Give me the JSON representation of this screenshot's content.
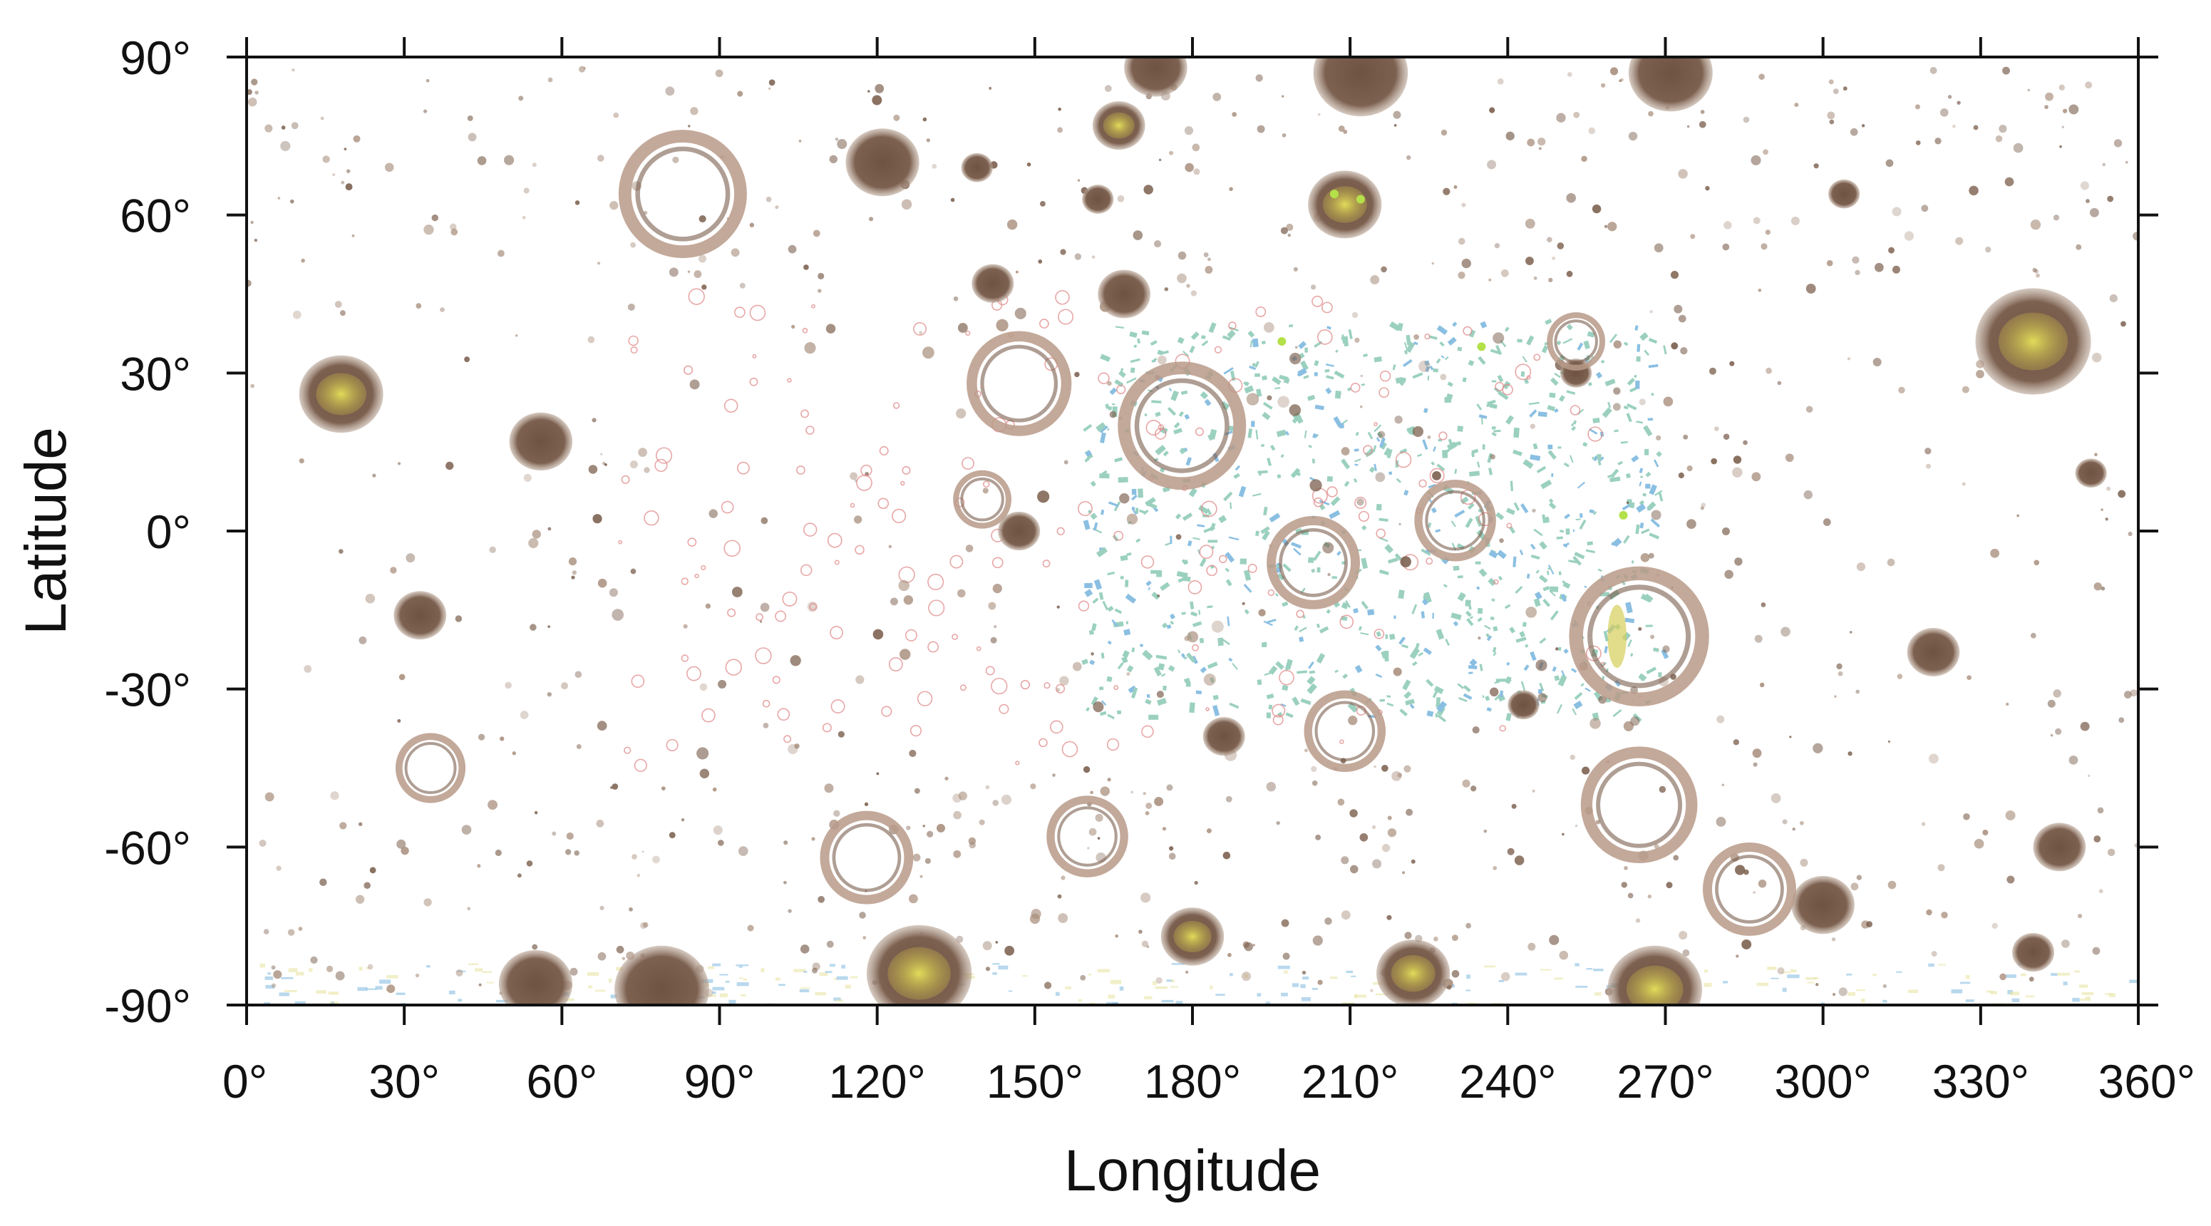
{
  "figure": {
    "x_axis_label": "Longitude",
    "y_axis_label": "Latitude",
    "x_ticks": [
      "0°",
      "30°",
      "60°",
      "90°",
      "120°",
      "150°",
      "180°",
      "210°",
      "240°",
      "270°",
      "300°",
      "330°",
      "360°"
    ],
    "y_ticks": [
      "90°",
      "60°",
      "30°",
      "0°",
      "-30°",
      "-60°",
      "-90°"
    ],
    "x_range": [
      0,
      360
    ],
    "y_range": [
      -90,
      90
    ],
    "projection": "equirectangular (simple cylindrical)",
    "background": "white"
  },
  "colors": {
    "crater_fill": "#7a5e4c",
    "crater_fill_light": "#a88e7c",
    "crater_ring": "#b89a88",
    "crater_center": "#d6cf5a",
    "crater_center_bright": "#b4e04a",
    "small_red_ring": "#e08a8a",
    "highland_band": "#4aaa8a",
    "highland_band_blue": "#2a8aca",
    "axis": "#111111"
  },
  "map_features": [
    {
      "type": "crater-filled",
      "lon": 18,
      "lat": 26,
      "r": 8,
      "center": true
    },
    {
      "type": "crater-filled",
      "lon": 56,
      "lat": 17,
      "r": 6
    },
    {
      "type": "crater-filled",
      "lon": 33,
      "lat": -16,
      "r": 5
    },
    {
      "type": "crater-filled",
      "lon": 340,
      "lat": 36,
      "r": 11,
      "center": true
    },
    {
      "type": "crater-filled",
      "lon": 321,
      "lat": -23,
      "r": 5
    },
    {
      "type": "crater-filled",
      "lon": 351,
      "lat": 11,
      "r": 3
    },
    {
      "type": "crater-filled",
      "lon": 121,
      "lat": 70,
      "r": 7
    },
    {
      "type": "crater-filled",
      "lon": 173,
      "lat": 88,
      "r": 6
    },
    {
      "type": "crater-filled",
      "lon": 212,
      "lat": 87,
      "r": 9
    },
    {
      "type": "crater-filled",
      "lon": 271,
      "lat": 87,
      "r": 8
    },
    {
      "type": "crater-filled",
      "lon": 167,
      "lat": 45,
      "r": 5
    },
    {
      "type": "crater-filled",
      "lon": 142,
      "lat": 47,
      "r": 4
    },
    {
      "type": "crater-filled",
      "lon": 304,
      "lat": 64,
      "r": 3
    },
    {
      "type": "crater-filled",
      "lon": 186,
      "lat": -39,
      "r": 4
    },
    {
      "type": "crater-filled",
      "lon": 128,
      "lat": -84,
      "r": 10,
      "center": true
    },
    {
      "type": "crater-filled",
      "lon": 180,
      "lat": -77,
      "r": 6,
      "center": true
    },
    {
      "type": "crater-filled",
      "lon": 222,
      "lat": -84,
      "r": 7,
      "center": true
    },
    {
      "type": "crater-filled",
      "lon": 268,
      "lat": -87,
      "r": 9,
      "center": true
    },
    {
      "type": "crater-filled",
      "lon": 300,
      "lat": -71,
      "r": 6
    },
    {
      "type": "crater-filled",
      "lon": 345,
      "lat": -60,
      "r": 5
    },
    {
      "type": "crater-filled",
      "lon": 55,
      "lat": -86,
      "r": 7
    },
    {
      "type": "crater-filled",
      "lon": 79,
      "lat": -87,
      "r": 9
    },
    {
      "type": "crater-filled",
      "lon": 340,
      "lat": -80,
      "r": 4
    },
    {
      "type": "crater-filled",
      "lon": 243,
      "lat": -33,
      "r": 3
    },
    {
      "type": "crater-filled",
      "lon": 209,
      "lat": 62,
      "r": 7,
      "center": true
    },
    {
      "type": "crater-filled",
      "lon": 166,
      "lat": 77,
      "r": 5,
      "center": true
    },
    {
      "type": "crater-filled",
      "lon": 253,
      "lat": 30,
      "r": 3
    },
    {
      "type": "crater-filled",
      "lon": 147,
      "lat": 0,
      "r": 4
    },
    {
      "type": "crater-filled",
      "lon": 162,
      "lat": 63,
      "r": 3
    },
    {
      "type": "crater-filled",
      "lon": 139,
      "lat": 69,
      "r": 3
    },
    {
      "type": "crater-ring",
      "lon": 83,
      "lat": 64,
      "r": 11
    },
    {
      "type": "crater-ring",
      "lon": 147,
      "lat": 28,
      "r": 9
    },
    {
      "type": "crater-ring",
      "lon": 178,
      "lat": 20,
      "r": 11
    },
    {
      "type": "crater-ring",
      "lon": 203,
      "lat": -6,
      "r": 8
    },
    {
      "type": "crater-ring",
      "lon": 230,
      "lat": 2,
      "r": 7
    },
    {
      "type": "crater-ring",
      "lon": 265,
      "lat": -20,
      "r": 12,
      "center": true
    },
    {
      "type": "crater-ring",
      "lon": 209,
      "lat": -38,
      "r": 7
    },
    {
      "type": "crater-ring",
      "lon": 140,
      "lat": 6,
      "r": 5
    },
    {
      "type": "crater-ring",
      "lon": 286,
      "lat": -68,
      "r": 8
    },
    {
      "type": "crater-ring",
      "lon": 253,
      "lat": 36,
      "r": 5
    },
    {
      "type": "crater-ring",
      "lon": 118,
      "lat": -62,
      "r": 8
    },
    {
      "type": "crater-ring",
      "lon": 265,
      "lat": -52,
      "r": 10
    },
    {
      "type": "crater-ring",
      "lon": 35,
      "lat": -45,
      "r": 6
    },
    {
      "type": "crater-ring",
      "lon": 160,
      "lat": -58,
      "r": 7
    }
  ]
}
